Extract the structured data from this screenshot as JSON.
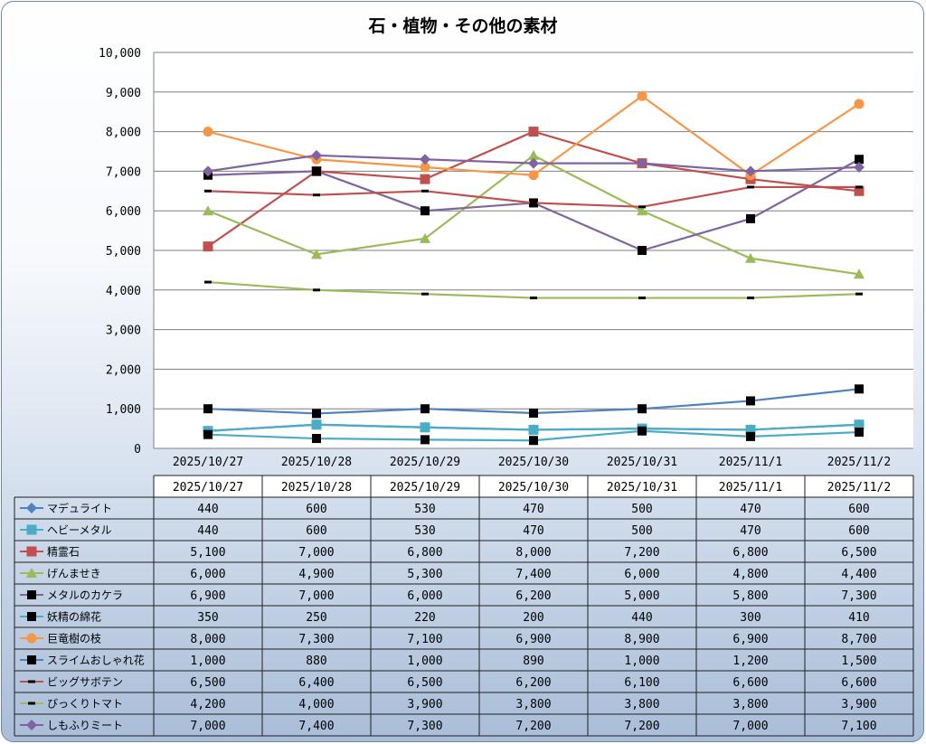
{
  "chart_data": {
    "type": "line",
    "title": "石・植物・その他の素材",
    "categories": [
      "2025/10/27",
      "2025/10/28",
      "2025/10/29",
      "2025/10/30",
      "2025/10/31",
      "2025/11/1",
      "2025/11/2"
    ],
    "ylim": [
      0,
      10000
    ],
    "yticks": [
      "0",
      "1,000",
      "2,000",
      "3,000",
      "4,000",
      "5,000",
      "6,000",
      "7,000",
      "8,000",
      "9,000",
      "10,000"
    ],
    "grid": true,
    "legend": "data-table",
    "series": [
      {
        "name": "マデュライト",
        "color": "#4f81bd",
        "marker": "diamond",
        "values": [
          440,
          600,
          530,
          470,
          500,
          470,
          600
        ],
        "labels": [
          "440",
          "600",
          "530",
          "470",
          "500",
          "470",
          "600"
        ]
      },
      {
        "name": "ヘビーメタル",
        "color": "#4bacc6",
        "marker": "square",
        "values": [
          440,
          600,
          530,
          470,
          500,
          470,
          600
        ],
        "labels": [
          "440",
          "600",
          "530",
          "470",
          "500",
          "470",
          "600"
        ]
      },
      {
        "name": "精霊石",
        "color": "#c0504d",
        "marker": "square",
        "values": [
          5100,
          7000,
          6800,
          8000,
          7200,
          6800,
          6500
        ],
        "labels": [
          "5,100",
          "7,000",
          "6,800",
          "8,000",
          "7,200",
          "6,800",
          "6,500"
        ]
      },
      {
        "name": "げんませき",
        "color": "#9bbb59",
        "marker": "triangle",
        "values": [
          6000,
          4900,
          5300,
          7400,
          6000,
          4800,
          4400
        ],
        "labels": [
          "6,000",
          "4,900",
          "5,300",
          "7,400",
          "6,000",
          "4,800",
          "4,400"
        ]
      },
      {
        "name": "メタルのカケラ",
        "color": "#8064a2",
        "marker": "black-square",
        "values": [
          6900,
          7000,
          6000,
          6200,
          5000,
          5800,
          7300
        ],
        "labels": [
          "6,900",
          "7,000",
          "6,000",
          "6,200",
          "5,000",
          "5,800",
          "7,300"
        ]
      },
      {
        "name": "妖精の綿花",
        "color": "#4bacc6",
        "marker": "black-square",
        "values": [
          350,
          250,
          220,
          200,
          440,
          300,
          410
        ],
        "labels": [
          "350",
          "250",
          "220",
          "200",
          "440",
          "300",
          "410"
        ]
      },
      {
        "name": "巨竜樹の枝",
        "color": "#f79646",
        "marker": "circle",
        "values": [
          8000,
          7300,
          7100,
          6900,
          8900,
          6900,
          8700
        ],
        "labels": [
          "8,000",
          "7,300",
          "7,100",
          "6,900",
          "8,900",
          "6,900",
          "8,700"
        ]
      },
      {
        "name": "スライムおしゃれ花",
        "color": "#4f81bd",
        "marker": "black-square",
        "values": [
          1000,
          880,
          1000,
          890,
          1000,
          1200,
          1500
        ],
        "labels": [
          "1,000",
          "880",
          "1,000",
          "890",
          "1,000",
          "1,200",
          "1,500"
        ]
      },
      {
        "name": "ビッグサボテン",
        "color": "#c0504d",
        "marker": "dash",
        "values": [
          6500,
          6400,
          6500,
          6200,
          6100,
          6600,
          6600
        ],
        "labels": [
          "6,500",
          "6,400",
          "6,500",
          "6,200",
          "6,100",
          "6,600",
          "6,600"
        ]
      },
      {
        "name": "びっくりトマト",
        "color": "#9bbb59",
        "marker": "dash",
        "values": [
          4200,
          4000,
          3900,
          3800,
          3800,
          3800,
          3900
        ],
        "labels": [
          "4,200",
          "4,000",
          "3,900",
          "3,800",
          "3,800",
          "3,800",
          "3,900"
        ]
      },
      {
        "name": "しもふりミート",
        "color": "#8064a2",
        "marker": "diamond",
        "values": [
          7000,
          7400,
          7300,
          7200,
          7200,
          7000,
          7100
        ],
        "labels": [
          "7,000",
          "7,400",
          "7,300",
          "7,200",
          "7,200",
          "7,000",
          "7,100"
        ]
      }
    ]
  }
}
